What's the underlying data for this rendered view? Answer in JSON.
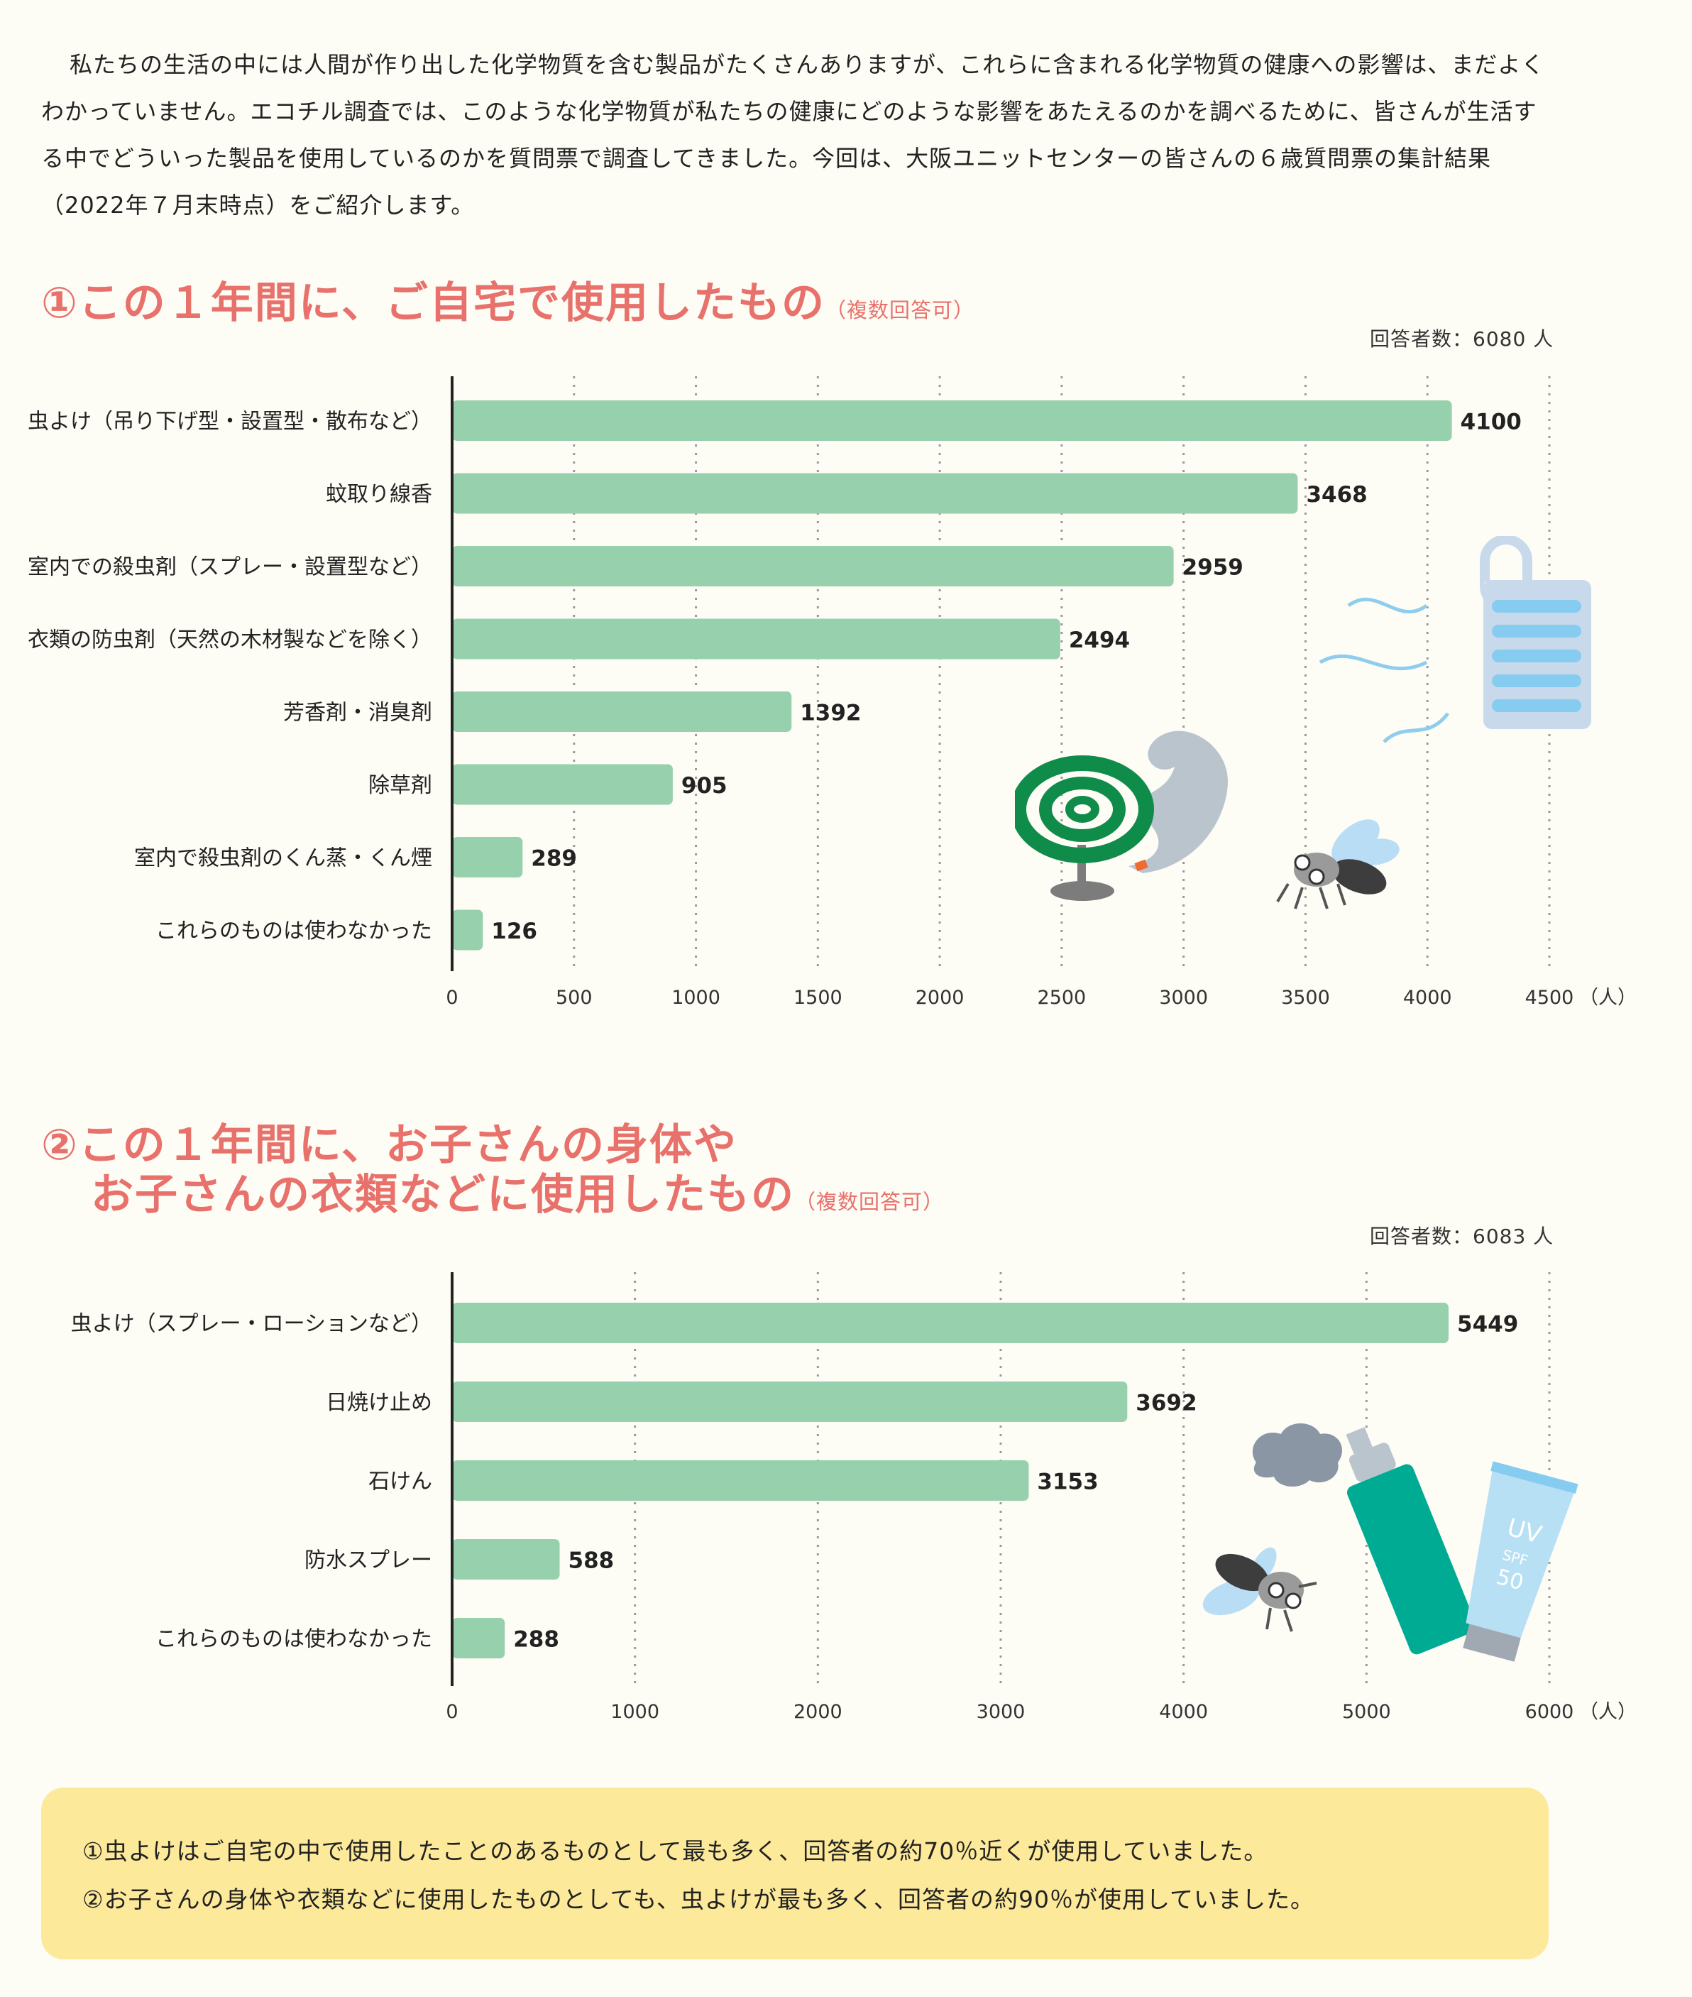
{
  "intro": "私たちの生活の中には人間が作り出した化学物質を含む製品がたくさんありますが、これらに含まれる化学物質の健康への影響は、まだよくわかっていません。エコチル調査では、このような化学物質が私たちの健康にどのような影響をあたえるのかを調べるために、皆さんが生活する中でどういった製品を使用しているのかを質問票で調査してきました。今回は、大阪ユニットセンターの皆さんの６歳質問票の集計結果（2022年７月末時点）をご紹介します。",
  "section1": {
    "title": "①この１年間に、ご自宅で使用したもの",
    "note": "（複数回答可）",
    "respondents": "回答者数：6080 人"
  },
  "section2": {
    "title_line1": "②この１年間に、お子さんの身体や",
    "title_line2": "お子さんの衣類などに使用したもの",
    "note": "（複数回答可）",
    "respondents": "回答者数：6083 人"
  },
  "summary": {
    "line1": "①虫よけはご自宅の中で使用したことのあるものとして最も多く、回答者の約70％近くが使用していました。",
    "line2": "②お子さんの身体や衣類などに使用したものとしても、虫よけが最も多く、回答者の約90％が使用していました。"
  },
  "colors": {
    "bar": "#97d0ac",
    "heading": "#e8716b",
    "summary_bg": "#fde99a",
    "background": "#fdfcf5"
  },
  "icons": [
    "mosquito-coil-icon",
    "smoke-icon",
    "insect-repellent-hanger-icon",
    "dead-mosquito-icon",
    "spray-can-icon",
    "sunscreen-tube-icon",
    "spray-cloud-icon"
  ],
  "chart_data": [
    {
      "type": "bar",
      "orientation": "horizontal",
      "categories": [
        "虫よけ（吊り下げ型・設置型・散布など）",
        "蚊取り線香",
        "室内での殺虫剤（スプレー・設置型など）",
        "衣類の防虫剤（天然の木材製などを除く）",
        "芳香剤・消臭剤",
        "除草剤",
        "室内で殺虫剤のくん蒸・くん煙",
        "これらのものは使わなかった"
      ],
      "values": [
        4100,
        3468,
        2959,
        2494,
        1392,
        905,
        289,
        126
      ],
      "xticks": [
        "0",
        "500",
        "1000",
        "1500",
        "2000",
        "2500",
        "3000",
        "3500",
        "4000",
        "4500"
      ],
      "xunit": "（人）",
      "xlim": [
        0,
        4500
      ],
      "grid": "vertical dotted"
    },
    {
      "type": "bar",
      "orientation": "horizontal",
      "categories": [
        "虫よけ（スプレー・ローションなど）",
        "日焼け止め",
        "石けん",
        "防水スプレー",
        "これらのものは使わなかった"
      ],
      "values": [
        5449,
        3692,
        3153,
        588,
        288
      ],
      "xticks": [
        "0",
        "1000",
        "2000",
        "3000",
        "4000",
        "5000",
        "6000"
      ],
      "xunit": "（人）",
      "xlim": [
        0,
        6000
      ],
      "grid": "vertical dotted"
    }
  ]
}
